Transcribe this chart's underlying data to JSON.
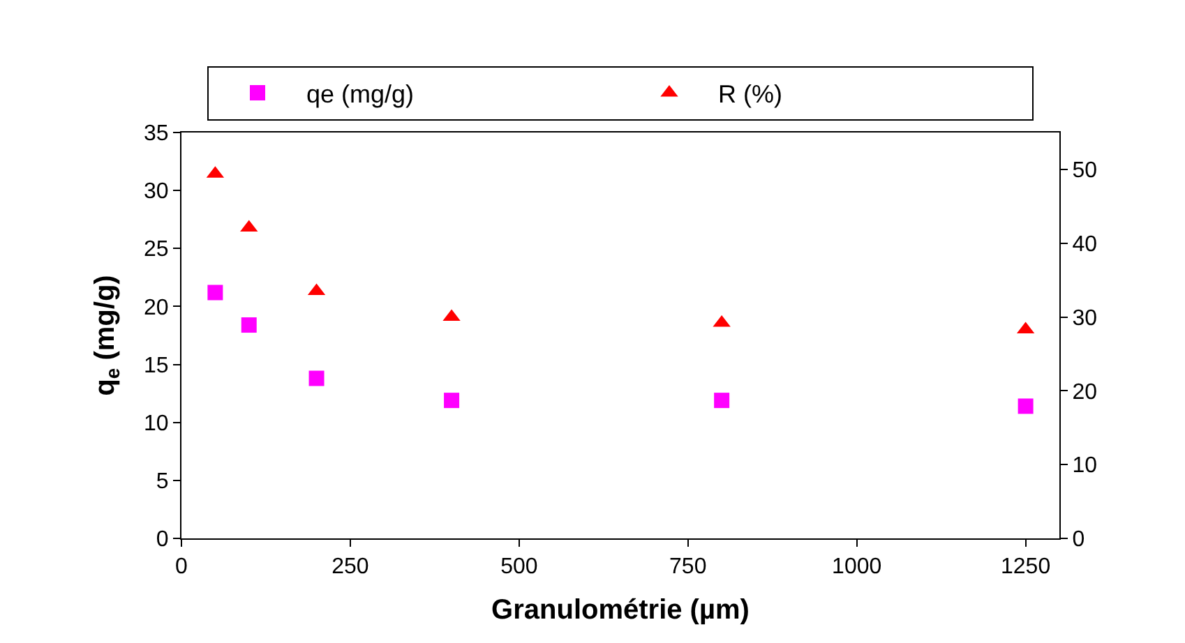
{
  "chart_data": {
    "type": "scatter",
    "xlabel": "Granulométrie (µm)",
    "ylabel": "q$_{e}$ (mg/g)",
    "x": [
      50,
      100,
      200,
      400,
      800,
      1250
    ],
    "series": [
      {
        "name": "qe (mg/g)",
        "color": "#ff00ff",
        "marker": "square",
        "values": [
          21.2,
          18.4,
          13.8,
          11.9,
          11.9,
          11.4
        ]
      },
      {
        "name": "R (%)",
        "color": "#ff0000",
        "marker": "triangle",
        "axis": "y2",
        "values": [
          49.4,
          42.1,
          33.5,
          30.0,
          29.2,
          28.3
        ]
      }
    ],
    "xlim": [
      0,
      1300
    ],
    "xticks": [
      0,
      250,
      500,
      750,
      1000,
      1250
    ],
    "ylim": [
      0,
      35
    ],
    "yticks": [
      0,
      5,
      10,
      15,
      20,
      25,
      30,
      35
    ],
    "y2lim": [
      0,
      55
    ],
    "y2ticks": [
      0,
      10,
      20,
      30,
      40,
      50
    ],
    "legend": "top"
  }
}
